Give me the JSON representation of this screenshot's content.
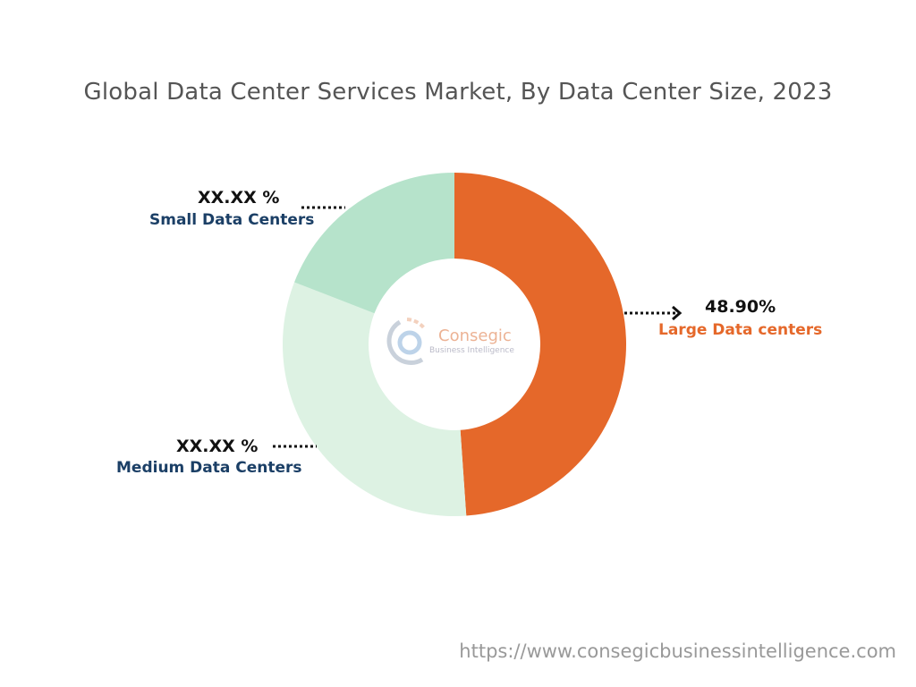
{
  "chart_data": {
    "type": "pie",
    "variant": "donut",
    "title": "Global Data Center Services Market, By Data Center Size, 2023",
    "slices": [
      {
        "name": "Large Data centers",
        "value": 48.9,
        "label": "48.90%",
        "color": "#E5682A"
      },
      {
        "name": "Medium Data Centers",
        "value": 32.0,
        "label": "XX.XX %",
        "color": "#DDF2E3"
      },
      {
        "name": "Small Data Centers",
        "value": 19.1,
        "label": "XX.XX %",
        "color": "#B6E3CB"
      }
    ],
    "start_angle": "top, clockwise"
  },
  "colors": {
    "label_dark": "#1B3F66",
    "label_orange": "#E5682A"
  },
  "logo": {
    "name": "Consegic",
    "tagline": "Business Intelligence"
  },
  "footer": {
    "url": "https://www.consegicbusinessintelligence.com"
  }
}
